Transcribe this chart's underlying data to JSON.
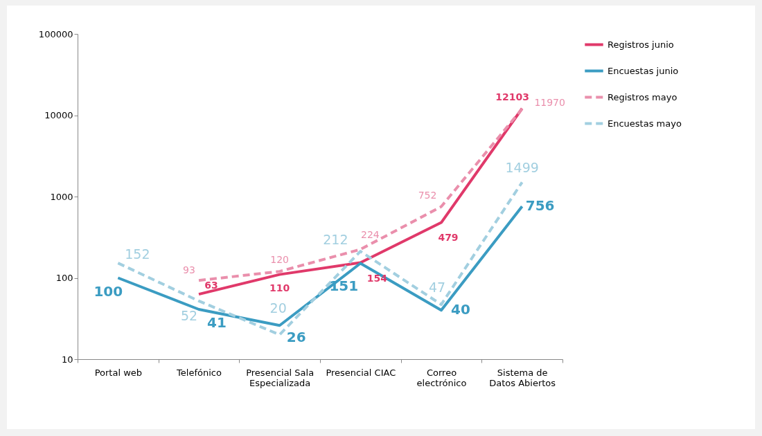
{
  "chart_data": {
    "type": "line",
    "categories": [
      "Portal web",
      "Telefónico",
      "Presencial Sala Especializada",
      "Presencial CIAC",
      "Correo electrónico",
      "Sistema de Datos Abiertos"
    ],
    "series": [
      {
        "name": "Registros junio",
        "color": "#e0396a",
        "line_style": "solid",
        "values": [
          null,
          63,
          110,
          154,
          479,
          12103
        ]
      },
      {
        "name": "Encuestas junio",
        "color": "#3b9cc2",
        "line_style": "solid",
        "values": [
          100,
          41,
          26,
          151,
          40,
          756
        ]
      },
      {
        "name": "Registros mayo",
        "color": "#ea8fac",
        "line_style": "dashed",
        "values": [
          null,
          93,
          120,
          224,
          752,
          11970
        ]
      },
      {
        "name": "Encuestas mayo",
        "color": "#a2cfe0",
        "line_style": "dashed",
        "values": [
          152,
          52,
          20,
          212,
          47,
          1499
        ]
      }
    ],
    "log": true,
    "ylim": [
      10,
      100000
    ],
    "yticks": [
      10,
      100,
      1000,
      10000,
      100000
    ],
    "grid": false,
    "legend": "right",
    "data_labels": true,
    "marker": "none"
  }
}
